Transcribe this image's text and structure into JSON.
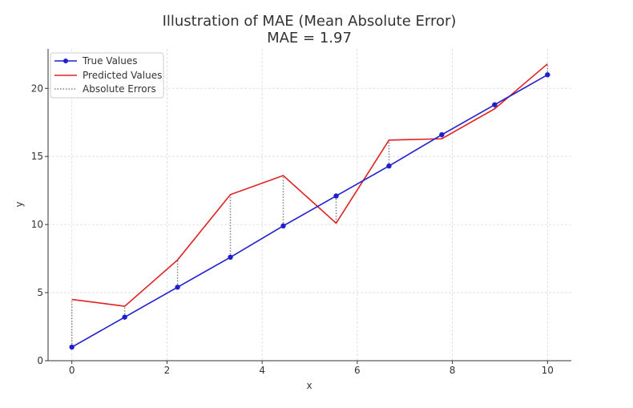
{
  "chart_data": {
    "type": "line",
    "title": "Illustration of MAE (Mean Absolute Error)",
    "subtitle": "MAE = 1.97",
    "xlabel": "x",
    "ylabel": "y",
    "xlim": [
      -0.5,
      10.5
    ],
    "ylim": [
      0,
      22.9
    ],
    "xticks": [
      0,
      2,
      4,
      6,
      8,
      10
    ],
    "yticks": [
      0,
      5,
      10,
      15,
      20
    ],
    "grid": true,
    "legend_position": "top-left",
    "x": [
      0,
      1.111,
      2.222,
      3.333,
      4.444,
      5.556,
      6.667,
      7.778,
      8.889,
      10
    ],
    "series": [
      {
        "name": "True Values",
        "color": "#1f1fcf",
        "marker": "circle",
        "values": [
          1.0,
          3.2,
          5.4,
          7.6,
          9.9,
          12.1,
          14.3,
          16.6,
          18.8,
          21.0
        ]
      },
      {
        "name": "Predicted Values",
        "color": "#e02020",
        "marker": "none",
        "values": [
          4.5,
          4.0,
          7.4,
          12.2,
          13.6,
          10.1,
          16.2,
          16.3,
          18.5,
          21.8
        ]
      }
    ],
    "errors": {
      "name": "Absolute Errors",
      "color": "#808080",
      "style": "dotted"
    }
  }
}
